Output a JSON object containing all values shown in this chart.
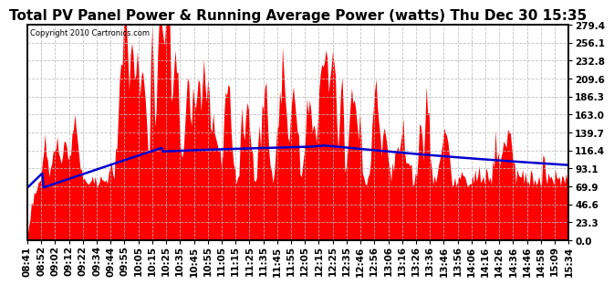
{
  "title": "Total PV Panel Power & Running Average Power (watts) Thu Dec 30 15:35",
  "copyright": "Copyright 2010 Cartronics.com",
  "ylabel_right": [
    "279.4",
    "256.1",
    "232.8",
    "209.6",
    "186.3",
    "163.0",
    "139.7",
    "116.4",
    "93.1",
    "69.9",
    "46.6",
    "23.3",
    "0.0"
  ],
  "ymax": 279.4,
  "ymin": 0.0,
  "background_color": "#ffffff",
  "plot_bg_color": "#ffffff",
  "grid_color": "#bbbbbb",
  "bar_color": "#ff0000",
  "line_color": "#0000cc",
  "title_fontsize": 11,
  "tick_label_fontsize": 7.5,
  "x_tick_labels": [
    "08:41",
    "08:52",
    "09:02",
    "09:12",
    "09:22",
    "09:34",
    "09:44",
    "09:55",
    "10:05",
    "10:15",
    "10:25",
    "10:35",
    "10:45",
    "10:55",
    "11:05",
    "11:15",
    "11:25",
    "11:35",
    "11:45",
    "11:55",
    "12:05",
    "12:15",
    "12:25",
    "12:35",
    "12:46",
    "12:56",
    "13:06",
    "13:16",
    "13:26",
    "13:36",
    "13:46",
    "13:56",
    "14:06",
    "14:16",
    "14:26",
    "14:36",
    "14:46",
    "14:58",
    "15:09",
    "15:34"
  ]
}
